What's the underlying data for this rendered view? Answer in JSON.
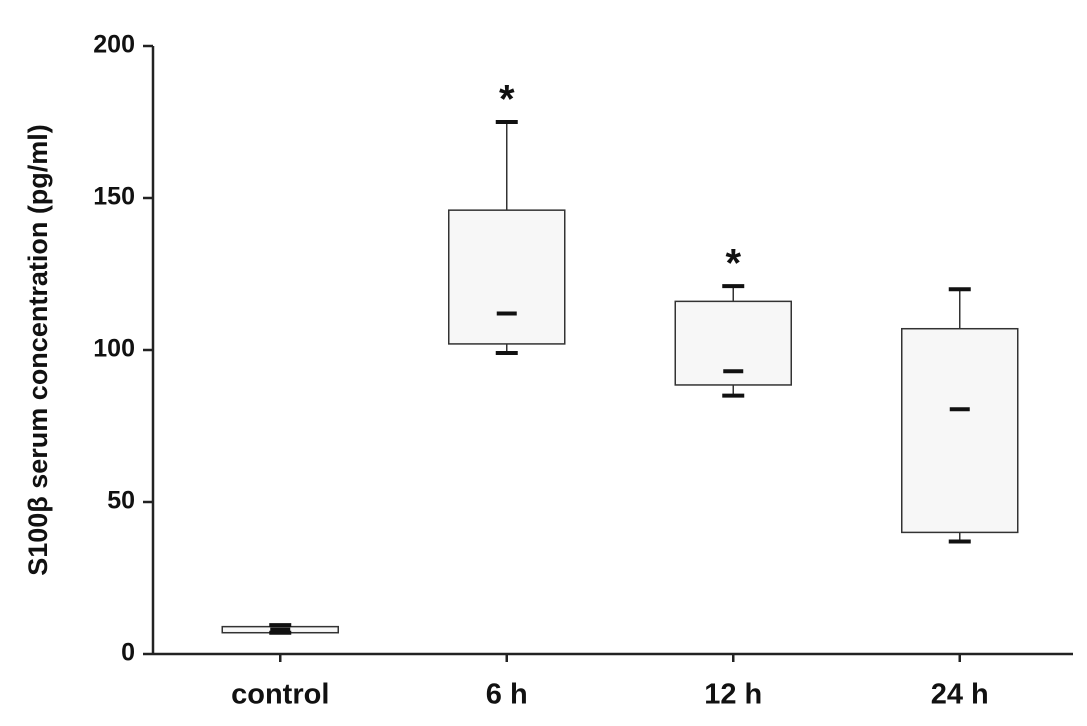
{
  "chart_data": {
    "type": "box",
    "y_label": "S100β serum concentration (pg/ml)",
    "categories": [
      "control",
      "6 h",
      "12 h",
      "24 h"
    ],
    "min": [
      7,
      99,
      85,
      37
    ],
    "q1": [
      7,
      102,
      88.5,
      40
    ],
    "median": [
      8,
      112,
      93,
      80.5
    ],
    "q3": [
      9,
      146,
      116,
      107
    ],
    "max": [
      9.5,
      175,
      121,
      120
    ],
    "significance": [
      null,
      "*",
      "*",
      null
    ],
    "color": "#f7f7f7",
    "ylim": [
      0,
      200
    ],
    "yticks": [
      0,
      50,
      100,
      150,
      200
    ],
    "grid": false
  }
}
